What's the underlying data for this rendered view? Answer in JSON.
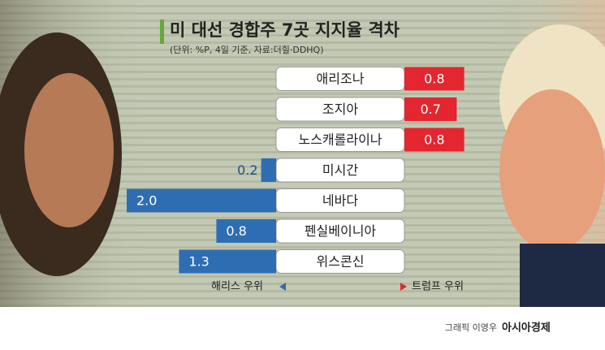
{
  "chart_data": {
    "type": "bar",
    "title": "미 대선 경합주 7곳 지지율 격차",
    "subtitle": "(단위: %P, 4일 기준, 자료:더힐·DDHQ)",
    "categories": [
      "애리조나",
      "조지아",
      "노스캐롤라이나",
      "미시간",
      "네바다",
      "펜실베이니아",
      "위스콘신"
    ],
    "series": [
      {
        "name": "해리스 우위",
        "color": "#2f6db3",
        "values": [
          null,
          null,
          null,
          0.2,
          2.0,
          0.8,
          1.3
        ],
        "value_labels": [
          null,
          null,
          null,
          "0.2",
          "2.0",
          "0.8",
          "1.3"
        ]
      },
      {
        "name": "트럼프 우위",
        "color": "#e3262f",
        "values": [
          0.8,
          0.7,
          0.8,
          null,
          null,
          null,
          null
        ],
        "value_labels": [
          "0.8",
          "0.7",
          "0.8",
          null,
          null,
          null,
          null
        ]
      }
    ]
  },
  "footer": {
    "graphic": "그래픽 이영우",
    "publisher": "아시아경제"
  }
}
